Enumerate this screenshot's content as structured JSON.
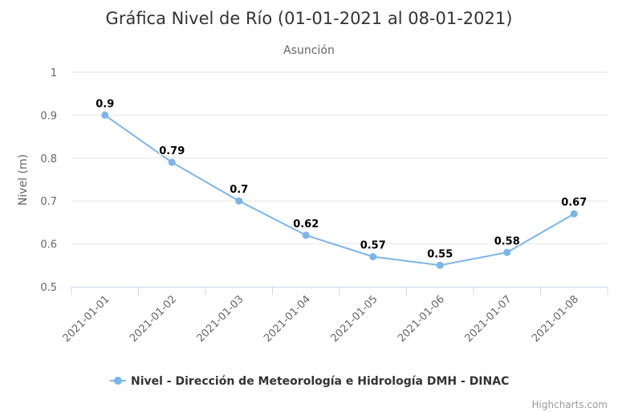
{
  "chart_data": {
    "type": "line",
    "title": "Gráfica Nivel de Río (01-01-2021 al 08-01-2021)",
    "subtitle": "Asunción",
    "xlabel": "",
    "ylabel": "Nivel (m)",
    "ylim": [
      0.5,
      1
    ],
    "yticks": [
      "0.5",
      "0.6",
      "0.7",
      "0.8",
      "0.9",
      "1"
    ],
    "categories": [
      "2021-01-01",
      "2021-01-02",
      "2021-01-03",
      "2021-01-04",
      "2021-01-05",
      "2021-01-06",
      "2021-01-07",
      "2021-01-08"
    ],
    "series": [
      {
        "name": "Nivel - Dirección de Meteorología e Hidrología DMH - DINAC",
        "values": [
          0.9,
          0.79,
          0.7,
          0.62,
          0.57,
          0.55,
          0.58,
          0.67
        ],
        "labels": [
          "0.9",
          "0.79",
          "0.7",
          "0.62",
          "0.57",
          "0.55",
          "0.58",
          "0.67"
        ],
        "color": "#7cb5ec"
      }
    ],
    "grid": true,
    "legend": "bottom-center",
    "credits": "Highcharts.com"
  }
}
